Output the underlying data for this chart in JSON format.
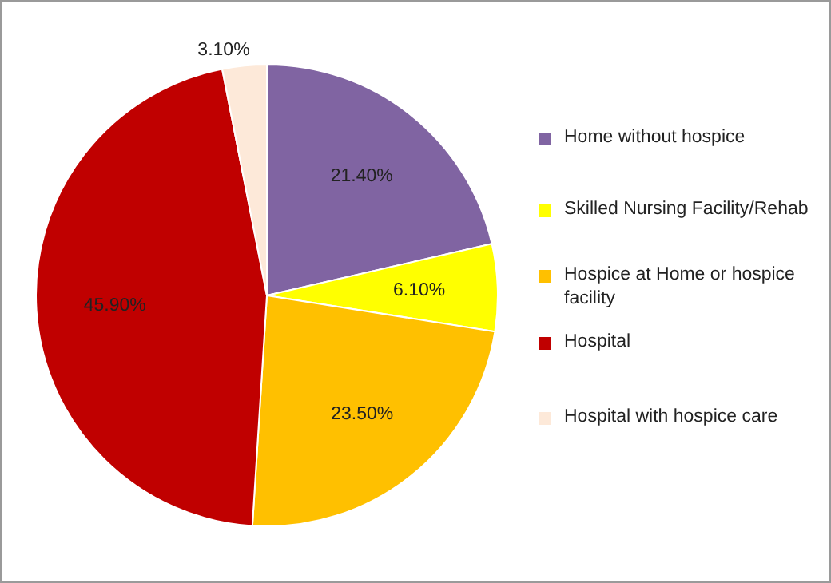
{
  "chart_data": {
    "type": "pie",
    "categories": [
      "Home without hospice",
      "Skilled Nursing Facility/Rehab",
      "Hospice at Home or hospice facility",
      "Hospital",
      "Hospital with hospice care"
    ],
    "values": [
      21.4,
      6.1,
      23.5,
      45.9,
      3.1
    ],
    "colors": [
      "#8064a2",
      "#ffff00",
      "#ffc000",
      "#c00000",
      "#fde9d9"
    ],
    "value_labels": [
      "21.40%",
      "6.10%",
      "23.50%",
      "45.90%",
      "3.10%"
    ],
    "legend": "right"
  }
}
